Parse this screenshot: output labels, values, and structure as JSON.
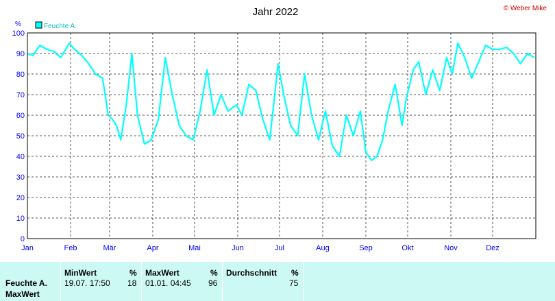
{
  "chart_data": {
    "type": "line",
    "title": "Jahr 2022",
    "credit": "© Weber Mike",
    "ylabel": "%",
    "ylim": [
      0,
      100
    ],
    "yticks": [
      0,
      10,
      20,
      30,
      40,
      50,
      60,
      70,
      80,
      90,
      100
    ],
    "xticks": [
      "Jan",
      "Feb",
      "Mär",
      "Apr",
      "Mai",
      "Jun",
      "Jul",
      "Aug",
      "Sep",
      "Okt",
      "Nov",
      "Dez"
    ],
    "grid": true,
    "legend_position": "top-left",
    "colors": {
      "line": "#00ffff",
      "credit": "#cc0000",
      "axis_text": "#0000ff"
    },
    "series": [
      {
        "name": "Feuchte A.",
        "x": [
          1,
          5,
          10,
          15,
          20,
          25,
          31,
          35,
          40,
          45,
          50,
          55,
          59,
          62,
          65,
          68,
          72,
          76,
          80,
          85,
          90,
          95,
          100,
          105,
          110,
          115,
          120,
          125,
          130,
          135,
          140,
          145,
          151,
          155,
          160,
          165,
          170,
          175,
          181,
          185,
          190,
          195,
          200,
          205,
          210,
          215,
          220,
          225,
          230,
          235,
          240,
          244,
          248,
          252,
          256,
          260,
          265,
          270,
          273,
          278,
          282,
          287,
          292,
          297,
          302,
          306,
          310,
          315,
          320,
          325,
          330,
          335,
          340,
          345,
          350,
          355,
          360,
          365
        ],
        "y": [
          90,
          89,
          94,
          92,
          91,
          88,
          95,
          92,
          89,
          85,
          80,
          78,
          60,
          58,
          55,
          48,
          65,
          90,
          60,
          46,
          48,
          58,
          88,
          70,
          55,
          50,
          48,
          62,
          82,
          60,
          70,
          62,
          65,
          60,
          75,
          72,
          58,
          48,
          85,
          70,
          55,
          50,
          80,
          60,
          48,
          62,
          45,
          40,
          60,
          50,
          62,
          42,
          38,
          40,
          48,
          62,
          75,
          55,
          68,
          82,
          86,
          70,
          82,
          72,
          88,
          80,
          95,
          88,
          78,
          86,
          94,
          92,
          92,
          93,
          90,
          85,
          90,
          88
        ]
      }
    ],
    "stats": {
      "headers": {
        "min": "MinWert",
        "max": "MaxWert",
        "avg": "Durchschnitt",
        "unit": "%"
      },
      "row_label": "Feuchte A.",
      "row_label_2": "MaxWert",
      "min_time": "19.07.  17:50",
      "min_value": "18",
      "max_time": "01.01.  04:45",
      "max_value": "96",
      "avg_value": "75"
    }
  }
}
